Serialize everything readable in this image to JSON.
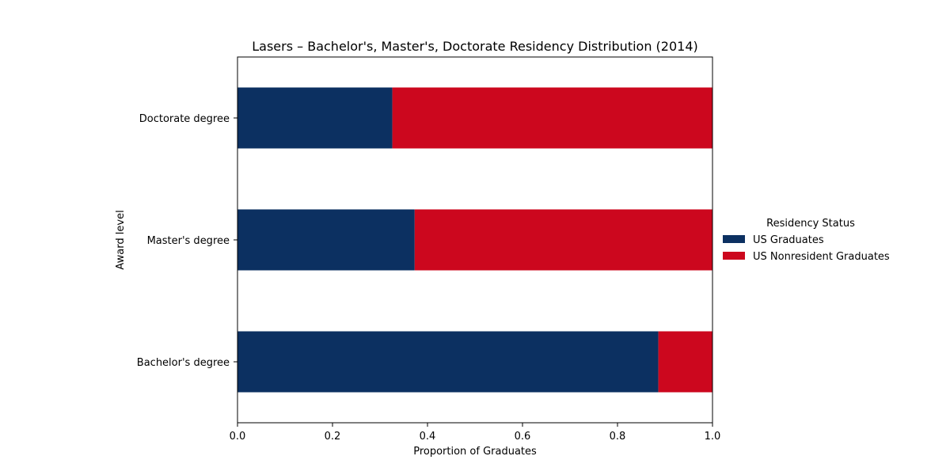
{
  "chart_data": {
    "type": "bar",
    "orientation": "horizontal",
    "stacked": true,
    "title": "Lasers – Bachelor's, Master's, Doctorate Residency Distribution (2014)",
    "xlabel": "Proportion of Graduates",
    "ylabel": "Award level",
    "xlim": [
      0,
      1
    ],
    "xticks": [
      0.0,
      0.2,
      0.4,
      0.6,
      0.8,
      1.0
    ],
    "xtick_labels": [
      "0.0",
      "0.2",
      "0.4",
      "0.6",
      "0.8",
      "1.0"
    ],
    "categories": [
      "Bachelor's degree",
      "Master's degree",
      "Doctorate degree"
    ],
    "series": [
      {
        "name": "US Graduates",
        "color": "#0c3061",
        "values": [
          0.886,
          0.373,
          0.326
        ]
      },
      {
        "name": "US Nonresident Graduates",
        "color": "#cc071e",
        "values": [
          0.114,
          0.627,
          0.674
        ]
      }
    ],
    "legend": {
      "title": "Residency Status",
      "placement": "right"
    },
    "grid": false
  }
}
